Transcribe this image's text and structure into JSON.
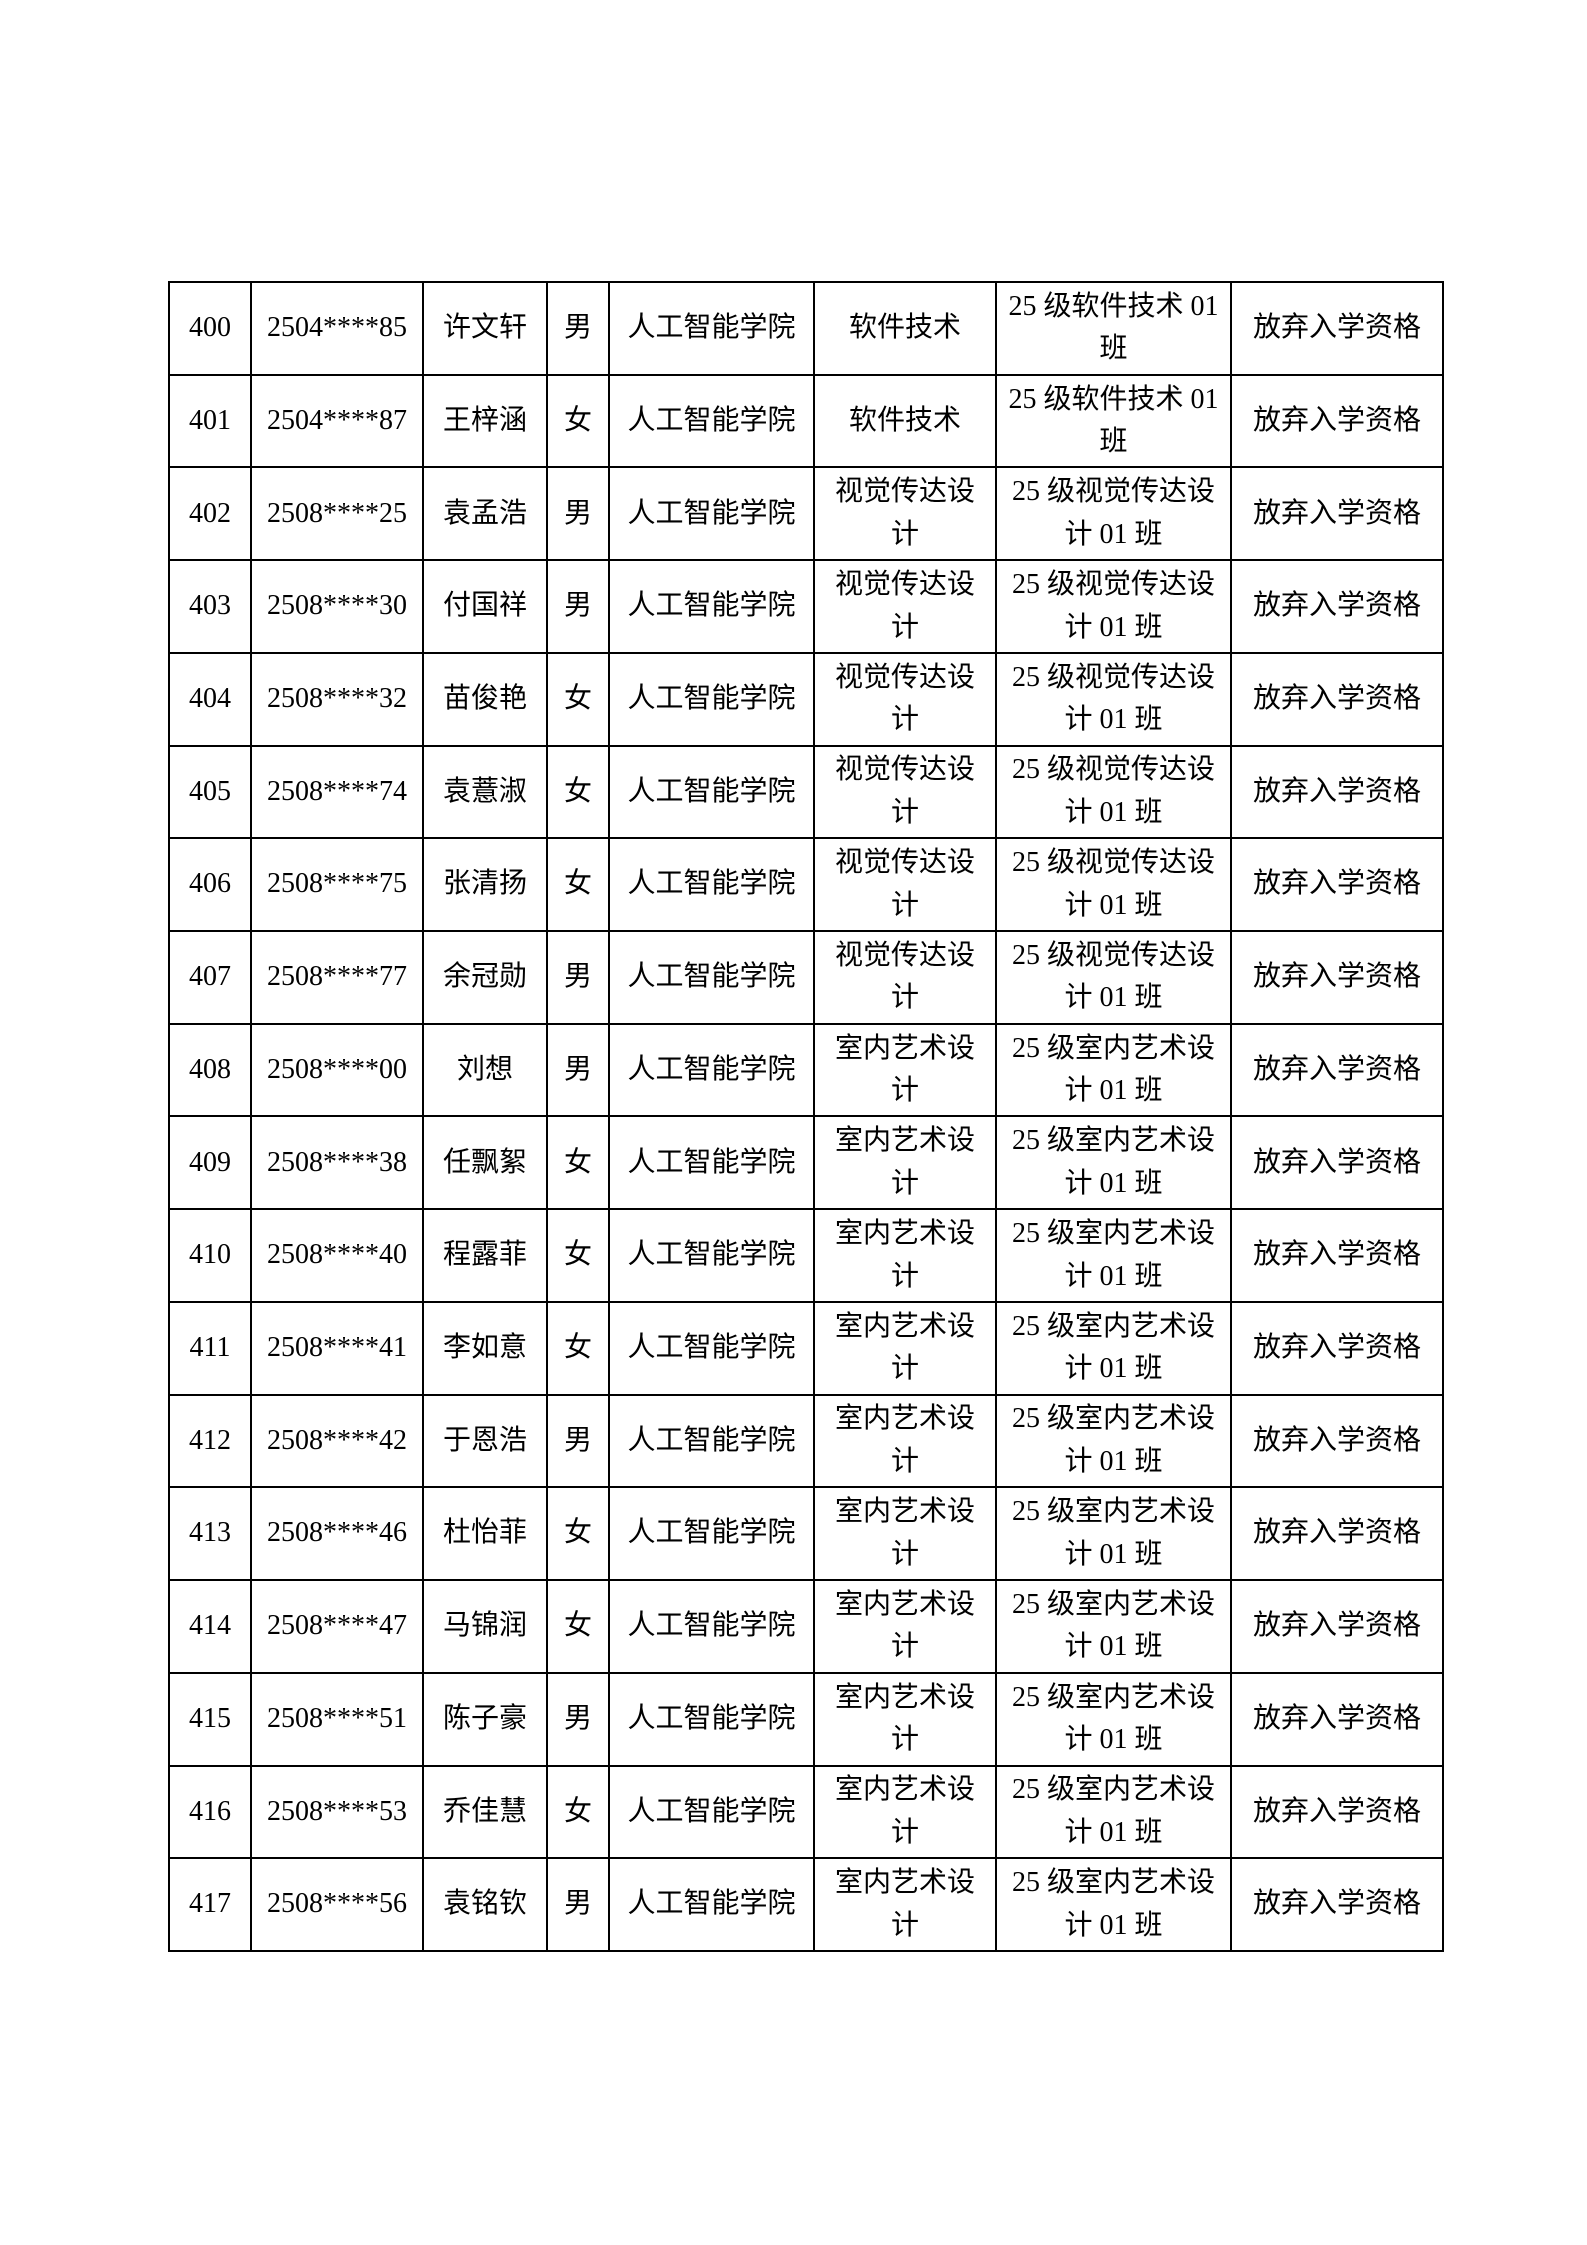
{
  "table": {
    "rows": [
      {
        "no": "400",
        "student_id": "2504****85",
        "name": "许文轩",
        "gender": "男",
        "college": "人工智能学院",
        "major": "软件技术",
        "class_name": "25 级软件技术 01\n班",
        "status": "放弃入学资格"
      },
      {
        "no": "401",
        "student_id": "2504****87",
        "name": "王梓涵",
        "gender": "女",
        "college": "人工智能学院",
        "major": "软件技术",
        "class_name": "25 级软件技术 01\n班",
        "status": "放弃入学资格"
      },
      {
        "no": "402",
        "student_id": "2508****25",
        "name": "袁孟浩",
        "gender": "男",
        "college": "人工智能学院",
        "major": "视觉传达设\n计",
        "class_name": "25 级视觉传达设\n计 01 班",
        "status": "放弃入学资格"
      },
      {
        "no": "403",
        "student_id": "2508****30",
        "name": "付国祥",
        "gender": "男",
        "college": "人工智能学院",
        "major": "视觉传达设\n计",
        "class_name": "25 级视觉传达设\n计 01 班",
        "status": "放弃入学资格"
      },
      {
        "no": "404",
        "student_id": "2508****32",
        "name": "苗俊艳",
        "gender": "女",
        "college": "人工智能学院",
        "major": "视觉传达设\n计",
        "class_name": "25 级视觉传达设\n计 01 班",
        "status": "放弃入学资格"
      },
      {
        "no": "405",
        "student_id": "2508****74",
        "name": "袁薏淑",
        "gender": "女",
        "college": "人工智能学院",
        "major": "视觉传达设\n计",
        "class_name": "25 级视觉传达设\n计 01 班",
        "status": "放弃入学资格"
      },
      {
        "no": "406",
        "student_id": "2508****75",
        "name": "张清扬",
        "gender": "女",
        "college": "人工智能学院",
        "major": "视觉传达设\n计",
        "class_name": "25 级视觉传达设\n计 01 班",
        "status": "放弃入学资格"
      },
      {
        "no": "407",
        "student_id": "2508****77",
        "name": "余冠勋",
        "gender": "男",
        "college": "人工智能学院",
        "major": "视觉传达设\n计",
        "class_name": "25 级视觉传达设\n计 01 班",
        "status": "放弃入学资格"
      },
      {
        "no": "408",
        "student_id": "2508****00",
        "name": "刘想",
        "gender": "男",
        "college": "人工智能学院",
        "major": "室内艺术设\n计",
        "class_name": "25 级室内艺术设\n计 01 班",
        "status": "放弃入学资格"
      },
      {
        "no": "409",
        "student_id": "2508****38",
        "name": "任飘絮",
        "gender": "女",
        "college": "人工智能学院",
        "major": "室内艺术设\n计",
        "class_name": "25 级室内艺术设\n计 01 班",
        "status": "放弃入学资格"
      },
      {
        "no": "410",
        "student_id": "2508****40",
        "name": "程露菲",
        "gender": "女",
        "college": "人工智能学院",
        "major": "室内艺术设\n计",
        "class_name": "25 级室内艺术设\n计 01 班",
        "status": "放弃入学资格"
      },
      {
        "no": "411",
        "student_id": "2508****41",
        "name": "李如意",
        "gender": "女",
        "college": "人工智能学院",
        "major": "室内艺术设\n计",
        "class_name": "25 级室内艺术设\n计 01 班",
        "status": "放弃入学资格"
      },
      {
        "no": "412",
        "student_id": "2508****42",
        "name": "于恩浩",
        "gender": "男",
        "college": "人工智能学院",
        "major": "室内艺术设\n计",
        "class_name": "25 级室内艺术设\n计 01 班",
        "status": "放弃入学资格"
      },
      {
        "no": "413",
        "student_id": "2508****46",
        "name": "杜怡菲",
        "gender": "女",
        "college": "人工智能学院",
        "major": "室内艺术设\n计",
        "class_name": "25 级室内艺术设\n计 01 班",
        "status": "放弃入学资格"
      },
      {
        "no": "414",
        "student_id": "2508****47",
        "name": "马锦润",
        "gender": "女",
        "college": "人工智能学院",
        "major": "室内艺术设\n计",
        "class_name": "25 级室内艺术设\n计 01 班",
        "status": "放弃入学资格"
      },
      {
        "no": "415",
        "student_id": "2508****51",
        "name": "陈子豪",
        "gender": "男",
        "college": "人工智能学院",
        "major": "室内艺术设\n计",
        "class_name": "25 级室内艺术设\n计 01 班",
        "status": "放弃入学资格"
      },
      {
        "no": "416",
        "student_id": "2508****53",
        "name": "乔佳慧",
        "gender": "女",
        "college": "人工智能学院",
        "major": "室内艺术设\n计",
        "class_name": "25 级室内艺术设\n计 01 班",
        "status": "放弃入学资格"
      },
      {
        "no": "417",
        "student_id": "2508****56",
        "name": "袁铭钦",
        "gender": "男",
        "college": "人工智能学院",
        "major": "室内艺术设\n计",
        "class_name": "25 级室内艺术设\n计 01 班",
        "status": "放弃入学资格"
      }
    ]
  }
}
